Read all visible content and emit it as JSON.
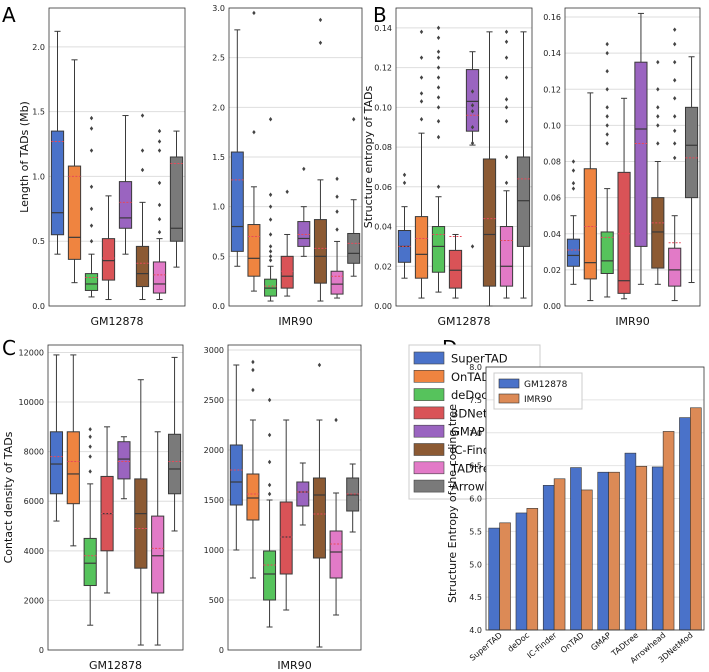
{
  "figure": {
    "panel_labels": [
      "A",
      "B",
      "C",
      "D"
    ],
    "methods": [
      "SuperTAD",
      "OnTAD",
      "deDoc",
      "3DNetMod",
      "GMAP",
      "IC-Finder",
      "TADtree",
      "Arrowhead"
    ],
    "method_colors": [
      "#4a72c9",
      "#ef8440",
      "#56c35c",
      "#d95357",
      "#9a64c0",
      "#8c5a33",
      "#e27ac7",
      "#7a7a7a"
    ],
    "mean_marker_color": "#e8495a"
  },
  "chart_data": [
    {
      "id": "A-GM12878",
      "type": "box",
      "ylabel": "Length of TADs (Mb)",
      "xlabel": "GM12878",
      "ylim": [
        0,
        2.3
      ],
      "yticks": [
        0.0,
        0.5,
        1.0,
        1.5,
        2.0
      ],
      "yticklabels": [
        "0.0",
        "0.5",
        "1.0",
        "1.5",
        "2.0"
      ],
      "boxes": [
        {
          "method": "SuperTAD",
          "low": 0.4,
          "q1": 0.55,
          "median": 0.72,
          "q3": 1.35,
          "high": 2.12,
          "mean": 1.27,
          "outliers": []
        },
        {
          "method": "OnTAD",
          "low": 0.18,
          "q1": 0.36,
          "median": 0.53,
          "q3": 1.08,
          "high": 1.9,
          "mean": 1.0,
          "outliers": []
        },
        {
          "method": "deDoc",
          "low": 0.07,
          "q1": 0.12,
          "median": 0.17,
          "q3": 0.25,
          "high": 0.4,
          "mean": 0.22,
          "outliers": [
            0.5,
            0.62,
            0.75,
            0.92,
            1.2,
            1.37,
            1.45
          ]
        },
        {
          "method": "3DNetMod",
          "low": 0.05,
          "q1": 0.2,
          "median": 0.35,
          "q3": 0.52,
          "high": 0.85,
          "mean": 0.37,
          "outliers": []
        },
        {
          "method": "GMAP",
          "low": 0.4,
          "q1": 0.6,
          "median": 0.68,
          "q3": 0.96,
          "high": 1.47,
          "mean": 0.8,
          "outliers": []
        },
        {
          "method": "IC-Finder",
          "low": 0.05,
          "q1": 0.15,
          "median": 0.25,
          "q3": 0.46,
          "high": 0.8,
          "mean": 0.33,
          "outliers": [
            1.05,
            1.2,
            1.47
          ]
        },
        {
          "method": "TADtree",
          "low": 0.05,
          "q1": 0.1,
          "median": 0.17,
          "q3": 0.34,
          "high": 0.52,
          "mean": 0.24,
          "outliers": [
            0.57,
            0.67,
            0.78,
            0.95,
            1.2,
            1.27,
            1.35
          ]
        },
        {
          "method": "Arrowhead",
          "low": 0.3,
          "q1": 0.5,
          "median": 0.6,
          "q3": 1.15,
          "high": 1.35,
          "mean": 1.1,
          "outliers": []
        }
      ]
    },
    {
      "id": "A-IMR90",
      "type": "box",
      "ylabel": "",
      "xlabel": "IMR90",
      "ylim": [
        0,
        3.0
      ],
      "yticks": [
        0.0,
        0.5,
        1.0,
        1.5,
        2.0,
        2.5,
        3.0
      ],
      "yticklabels": [
        "0.0",
        "0.5",
        "1.0",
        "1.5",
        "2.0",
        "2.5",
        "3.0"
      ],
      "boxes": [
        {
          "method": "SuperTAD",
          "low": 0.4,
          "q1": 0.55,
          "median": 0.8,
          "q3": 1.55,
          "high": 2.78,
          "mean": 1.27,
          "outliers": []
        },
        {
          "method": "OnTAD",
          "low": 0.15,
          "q1": 0.3,
          "median": 0.48,
          "q3": 0.82,
          "high": 1.2,
          "mean": 0.7,
          "outliers": [
            2.95,
            1.75
          ]
        },
        {
          "method": "deDoc",
          "low": 0.05,
          "q1": 0.1,
          "median": 0.18,
          "q3": 0.27,
          "high": 0.4,
          "mean": 0.2,
          "outliers": [
            0.46,
            0.5,
            0.55,
            0.6,
            0.72,
            0.87,
            1.0,
            1.12,
            1.88
          ]
        },
        {
          "method": "3DNetMod",
          "low": 0.1,
          "q1": 0.18,
          "median": 0.3,
          "q3": 0.5,
          "high": 0.72,
          "mean": 0.35,
          "outliers": [
            1.15
          ]
        },
        {
          "method": "GMAP",
          "low": 0.5,
          "q1": 0.6,
          "median": 0.68,
          "q3": 0.85,
          "high": 1.0,
          "mean": 0.72,
          "outliers": [
            1.38
          ]
        },
        {
          "method": "IC-Finder",
          "low": 0.05,
          "q1": 0.23,
          "median": 0.5,
          "q3": 0.87,
          "high": 1.27,
          "mean": 0.58,
          "outliers": [
            2.65,
            2.88
          ]
        },
        {
          "method": "TADtree",
          "low": 0.08,
          "q1": 0.12,
          "median": 0.22,
          "q3": 0.35,
          "high": 0.65,
          "mean": 0.3,
          "outliers": [
            0.77,
            0.95,
            1.1,
            1.28
          ]
        },
        {
          "method": "Arrowhead",
          "low": 0.3,
          "q1": 0.43,
          "median": 0.53,
          "q3": 0.73,
          "high": 1.07,
          "mean": 0.63,
          "outliers": [
            1.88
          ]
        }
      ]
    },
    {
      "id": "B-GM12878",
      "type": "box",
      "ylabel": "Structure entropy of TADs",
      "xlabel": "GM12878",
      "ylim": [
        0,
        0.15
      ],
      "yticks": [
        0.0,
        0.02,
        0.04,
        0.06,
        0.08,
        0.1,
        0.12,
        0.14
      ],
      "yticklabels": [
        "0.00",
        "0.02",
        "0.04",
        "0.06",
        "0.08",
        "0.10",
        "0.12",
        "0.14"
      ],
      "boxes": [
        {
          "method": "SuperTAD",
          "low": 0.014,
          "q1": 0.022,
          "median": 0.03,
          "q3": 0.038,
          "high": 0.05,
          "mean": 0.03,
          "outliers": [
            0.062,
            0.066
          ]
        },
        {
          "method": "OnTAD",
          "low": 0.004,
          "q1": 0.014,
          "median": 0.026,
          "q3": 0.045,
          "high": 0.087,
          "mean": 0.034,
          "outliers": [
            0.094,
            0.103,
            0.107,
            0.115,
            0.125,
            0.138
          ]
        },
        {
          "method": "deDoc",
          "low": 0.007,
          "q1": 0.017,
          "median": 0.03,
          "q3": 0.04,
          "high": 0.055,
          "mean": 0.036,
          "outliers": [
            0.06,
            0.085,
            0.093,
            0.1,
            0.105,
            0.11,
            0.115,
            0.12,
            0.125,
            0.128,
            0.135,
            0.14
          ]
        },
        {
          "method": "3DNetMod",
          "low": 0.004,
          "q1": 0.009,
          "median": 0.018,
          "q3": 0.028,
          "high": 0.036,
          "mean": 0.035,
          "outliers": []
        },
        {
          "method": "GMAP",
          "low": 0.081,
          "q1": 0.088,
          "median": 0.103,
          "q3": 0.119,
          "high": 0.128,
          "mean": 0.096,
          "outliers": [
            0.03,
            0.082,
            0.09,
            0.098,
            0.101,
            0.108
          ]
        },
        {
          "method": "IC-Finder",
          "low": 0.0,
          "q1": 0.01,
          "median": 0.036,
          "q3": 0.074,
          "high": 0.138,
          "mean": 0.044,
          "outliers": []
        },
        {
          "method": "TADtree",
          "low": 0.004,
          "q1": 0.01,
          "median": 0.02,
          "q3": 0.04,
          "high": 0.058,
          "mean": 0.033,
          "outliers": [
            0.062,
            0.075,
            0.093,
            0.1,
            0.104,
            0.115,
            0.125,
            0.133,
            0.138
          ]
        },
        {
          "method": "Arrowhead",
          "low": 0.004,
          "q1": 0.03,
          "median": 0.053,
          "q3": 0.075,
          "high": 0.138,
          "mean": 0.064,
          "outliers": []
        }
      ]
    },
    {
      "id": "B-IMR90",
      "type": "box",
      "ylabel": "",
      "xlabel": "IMR90",
      "ylim": [
        0,
        0.165
      ],
      "yticks": [
        0.0,
        0.02,
        0.04,
        0.06,
        0.08,
        0.1,
        0.12,
        0.14,
        0.16
      ],
      "yticklabels": [
        "0.00",
        "0.02",
        "0.04",
        "0.06",
        "0.08",
        "0.10",
        "0.12",
        "0.14",
        "0.16"
      ],
      "boxes": [
        {
          "method": "SuperTAD",
          "low": 0.012,
          "q1": 0.022,
          "median": 0.028,
          "q3": 0.037,
          "high": 0.05,
          "mean": 0.031,
          "outliers": [
            0.065,
            0.068,
            0.075,
            0.08
          ]
        },
        {
          "method": "OnTAD",
          "low": 0.003,
          "q1": 0.015,
          "median": 0.024,
          "q3": 0.076,
          "high": 0.118,
          "mean": 0.044,
          "outliers": []
        },
        {
          "method": "deDoc",
          "low": 0.005,
          "q1": 0.018,
          "median": 0.025,
          "q3": 0.041,
          "high": 0.065,
          "mean": 0.038,
          "outliers": [
            0.09,
            0.095,
            0.1,
            0.105,
            0.11,
            0.12,
            0.13,
            0.14,
            0.145
          ]
        },
        {
          "method": "3DNetMod",
          "low": 0.004,
          "q1": 0.007,
          "median": 0.014,
          "q3": 0.074,
          "high": 0.115,
          "mean": 0.04,
          "outliers": []
        },
        {
          "method": "GMAP",
          "low": 0.012,
          "q1": 0.033,
          "median": 0.098,
          "q3": 0.135,
          "high": 0.162,
          "mean": 0.09,
          "outliers": []
        },
        {
          "method": "IC-Finder",
          "low": 0.012,
          "q1": 0.021,
          "median": 0.041,
          "q3": 0.06,
          "high": 0.08,
          "mean": 0.046,
          "outliers": [
            0.09,
            0.1,
            0.105,
            0.11,
            0.12,
            0.135
          ]
        },
        {
          "method": "TADtree",
          "low": 0.003,
          "q1": 0.011,
          "median": 0.02,
          "q3": 0.032,
          "high": 0.05,
          "mean": 0.035,
          "outliers": [
            0.082,
            0.09,
            0.097,
            0.105,
            0.115,
            0.125,
            0.135,
            0.145,
            0.153
          ]
        },
        {
          "method": "Arrowhead",
          "low": 0.013,
          "q1": 0.06,
          "median": 0.089,
          "q3": 0.11,
          "high": 0.138,
          "mean": 0.082,
          "outliers": []
        }
      ]
    },
    {
      "id": "C-GM12878",
      "type": "box",
      "ylabel": "Contact density of TADs",
      "xlabel": "GM12878",
      "ylim": [
        0,
        12300
      ],
      "yticks": [
        0,
        2000,
        4000,
        6000,
        8000,
        10000,
        12000
      ],
      "yticklabels": [
        "0",
        "2000",
        "4000",
        "6000",
        "8000",
        "10000",
        "12000"
      ],
      "boxes": [
        {
          "method": "SuperTAD",
          "low": 5200,
          "q1": 6300,
          "median": 7500,
          "q3": 8800,
          "high": 11900,
          "mean": 7800,
          "outliers": []
        },
        {
          "method": "OnTAD",
          "low": 4200,
          "q1": 5900,
          "median": 7100,
          "q3": 8800,
          "high": 11900,
          "mean": 7600,
          "outliers": []
        },
        {
          "method": "deDoc",
          "low": 1000,
          "q1": 2600,
          "median": 3500,
          "q3": 4500,
          "high": 6700,
          "mean": 3800,
          "outliers": [
            7200,
            7800,
            8200,
            8600,
            8900
          ]
        },
        {
          "method": "3DNetMod",
          "low": 2300,
          "q1": 4000,
          "median": 5500,
          "q3": 7000,
          "high": 9000,
          "mean": 5500,
          "outliers": []
        },
        {
          "method": "GMAP",
          "low": 6100,
          "q1": 6900,
          "median": 7700,
          "q3": 8400,
          "high": 8600,
          "mean": 7600,
          "outliers": []
        },
        {
          "method": "IC-Finder",
          "low": 200,
          "q1": 3300,
          "median": 5500,
          "q3": 6900,
          "high": 10900,
          "mean": 4900,
          "outliers": []
        },
        {
          "method": "TADtree",
          "low": 200,
          "q1": 2300,
          "median": 3800,
          "q3": 5400,
          "high": 8800,
          "mean": 4100,
          "outliers": []
        },
        {
          "method": "Arrowhead",
          "low": 4800,
          "q1": 6300,
          "median": 7300,
          "q3": 8700,
          "high": 11800,
          "mean": 7600,
          "outliers": []
        }
      ]
    },
    {
      "id": "C-IMR90",
      "type": "box",
      "ylabel": "",
      "xlabel": "IMR90",
      "ylim": [
        0,
        3050
      ],
      "yticks": [
        0,
        500,
        1000,
        1500,
        2000,
        2500,
        3000
      ],
      "yticklabels": [
        "0",
        "500",
        "1000",
        "1500",
        "2000",
        "2500",
        "3000"
      ],
      "boxes": [
        {
          "method": "SuperTAD",
          "low": 1000,
          "q1": 1450,
          "median": 1680,
          "q3": 2050,
          "high": 2850,
          "mean": 1800,
          "outliers": []
        },
        {
          "method": "OnTAD",
          "low": 720,
          "q1": 1300,
          "median": 1520,
          "q3": 1760,
          "high": 2300,
          "mean": 1560,
          "outliers": [
            2600,
            2800,
            2880
          ]
        },
        {
          "method": "deDoc",
          "low": 230,
          "q1": 500,
          "median": 760,
          "q3": 990,
          "high": 1500,
          "mean": 850,
          "outliers": [
            1560,
            1650,
            1880,
            2150,
            2500
          ]
        },
        {
          "method": "3DNetMod",
          "low": 400,
          "q1": 760,
          "median": 1130,
          "q3": 1480,
          "high": 2300,
          "mean": 1130,
          "outliers": []
        },
        {
          "method": "GMAP",
          "low": 1250,
          "q1": 1440,
          "median": 1580,
          "q3": 1680,
          "high": 1870,
          "mean": 1580,
          "outliers": []
        },
        {
          "method": "IC-Finder",
          "low": 30,
          "q1": 920,
          "median": 1550,
          "q3": 1720,
          "high": 2300,
          "mean": 1360,
          "outliers": [
            2850
          ]
        },
        {
          "method": "TADtree",
          "low": 350,
          "q1": 720,
          "median": 980,
          "q3": 1190,
          "high": 1570,
          "mean": 1060,
          "outliers": [
            2300
          ]
        },
        {
          "method": "Arrowhead",
          "low": 1180,
          "q1": 1390,
          "median": 1550,
          "q3": 1720,
          "high": 1860,
          "mean": 1560,
          "outliers": []
        }
      ]
    },
    {
      "id": "D",
      "type": "bar",
      "title": "",
      "ylabel": "Structure Entropy of the coding tree",
      "xlabel": "",
      "ylim": [
        4.0,
        8.0
      ],
      "yticks": [
        4.0,
        4.5,
        5.0,
        5.5,
        6.0,
        6.5,
        7.0,
        7.5,
        8.0
      ],
      "yticklabels": [
        "4.0",
        "4.5",
        "5.0",
        "5.5",
        "6.0",
        "6.5",
        "7.0",
        "7.5",
        "8.0"
      ],
      "categories": [
        "SuperTAD",
        "deDoc",
        "IC-Finder",
        "OnTAD",
        "GMAP",
        "TADtree",
        "Arrowhead",
        "3DNetMod"
      ],
      "series": [
        {
          "name": "GM12878",
          "color": "#4a72c9",
          "values": [
            5.55,
            5.78,
            6.2,
            6.47,
            6.4,
            6.69,
            6.48,
            7.23
          ]
        },
        {
          "name": "IMR90",
          "color": "#dc8a56",
          "values": [
            5.63,
            5.85,
            6.3,
            6.13,
            6.4,
            6.49,
            7.02,
            7.38
          ]
        }
      ],
      "legend": "top-left"
    }
  ]
}
